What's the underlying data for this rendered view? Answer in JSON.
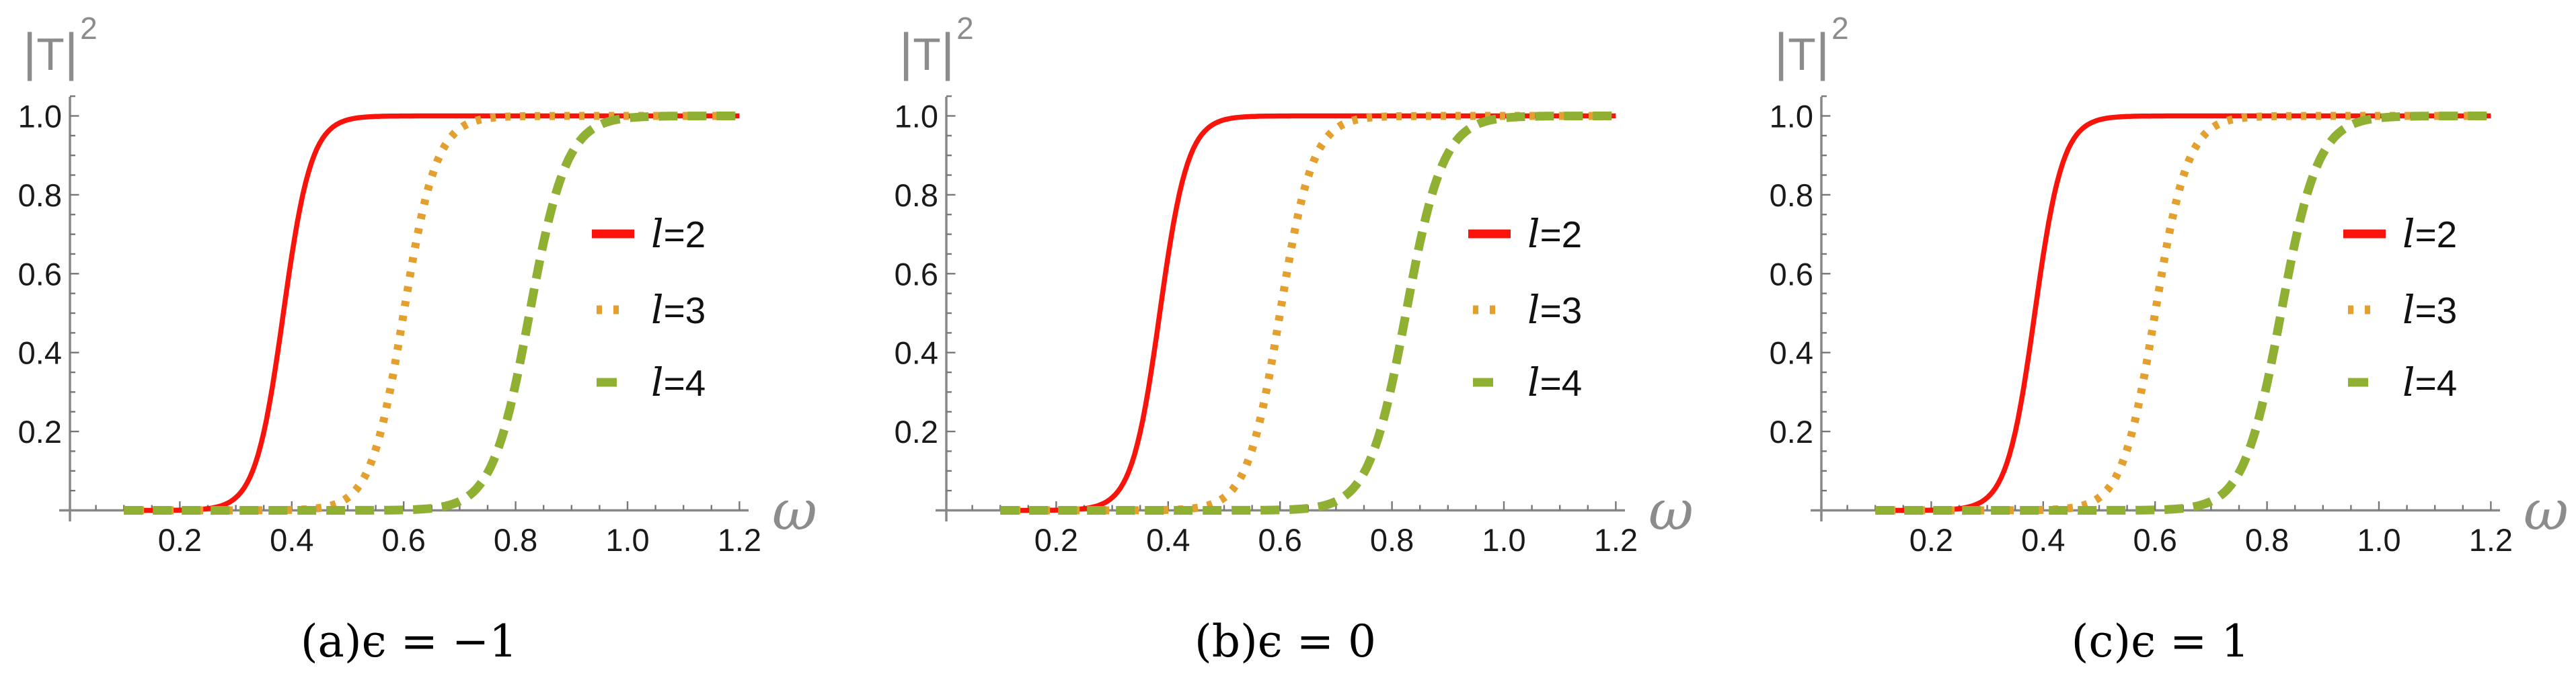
{
  "figure": {
    "background": "#ffffff",
    "description": "Three side-by-side Mathematica-style plots of transmission probability |T|^2 versus frequency ω for multipole numbers l=2,3,4, at ε=-1, ε=0, ε=1."
  },
  "axis": {
    "x_label": "ω",
    "y_label_base": "|T|",
    "y_label_exponent": "2",
    "axis_color": "#888888",
    "tick_color": "#777777",
    "tick_label_color": "#1a1a1a",
    "axis_label_color": "#8c8c8c"
  },
  "chart_data": [
    {
      "panel_id": "a",
      "type": "line",
      "title": "",
      "caption": "(a)ϵ = −1",
      "xlabel": "ω",
      "ylabel": "|T|²",
      "xlim": [
        0,
        1.21
      ],
      "ylim": [
        0,
        1.05
      ],
      "x_ticks": [
        0.2,
        0.4,
        0.6,
        0.8,
        1.0,
        1.2
      ],
      "y_ticks": [
        0.2,
        0.4,
        0.6,
        0.8,
        1.0
      ],
      "x_minor_step": 0.05,
      "y_minor_step": 0.05,
      "grid": false,
      "legend_position": "right-middle",
      "x_samples": [
        0.1,
        0.15,
        0.2,
        0.25,
        0.3,
        0.35,
        0.4,
        0.45,
        0.5,
        0.55,
        0.6,
        0.65,
        0.7,
        0.75,
        0.8,
        0.85,
        0.9,
        0.95,
        1.0,
        1.05,
        1.1,
        1.15,
        1.2
      ],
      "series": [
        {
          "name": "l=2",
          "color": "#f8130b",
          "style": "solid",
          "line_width": 7.5,
          "model": "logistic",
          "x0": 0.385,
          "k": 40,
          "x_start": 0.1,
          "x_end": 1.2,
          "y_samples": [
            0.0,
            0.0001,
            0.0006,
            0.0045,
            0.0323,
            0.1978,
            0.6457,
            0.9309,
            0.99,
            0.9986,
            0.9998,
            1.0,
            1.0,
            1.0,
            1.0,
            1.0,
            1.0,
            1.0,
            1.0,
            1.0,
            1.0,
            1.0,
            1.0
          ]
        },
        {
          "name": "l=3",
          "color": "#e3a02f",
          "style": "dotted",
          "line_width": 12,
          "model": "logistic",
          "x0": 0.6,
          "k": 34,
          "x_start": 0.1,
          "x_end": 1.2,
          "y_samples": [
            0.0,
            0.0,
            0.0,
            0.0,
            0.0,
            0.0002,
            0.0011,
            0.0061,
            0.0323,
            0.1545,
            0.5,
            0.8455,
            0.9677,
            0.9939,
            0.9989,
            0.9998,
            1.0,
            1.0,
            1.0,
            1.0,
            1.0,
            1.0,
            1.0
          ]
        },
        {
          "name": "l=4",
          "color": "#8fb032",
          "style": "dashed",
          "line_width": 13,
          "model": "logistic",
          "x0": 0.825,
          "k": 30,
          "x_start": 0.1,
          "x_end": 1.2,
          "y_samples": [
            0.0,
            0.0,
            0.0,
            0.0,
            0.0,
            0.0,
            0.0,
            0.0,
            0.0001,
            0.0003,
            0.0012,
            0.0052,
            0.023,
            0.0953,
            0.3208,
            0.6792,
            0.9047,
            0.977,
            0.9948,
            0.9988,
            0.9997,
            0.9999,
            1.0
          ]
        }
      ]
    },
    {
      "panel_id": "b",
      "type": "line",
      "title": "",
      "caption": "(b)ϵ = 0",
      "xlabel": "ω",
      "ylabel": "|T|²",
      "xlim": [
        0,
        1.21
      ],
      "ylim": [
        0,
        1.05
      ],
      "x_ticks": [
        0.2,
        0.4,
        0.6,
        0.8,
        1.0,
        1.2
      ],
      "y_ticks": [
        0.2,
        0.4,
        0.6,
        0.8,
        1.0
      ],
      "x_minor_step": 0.05,
      "y_minor_step": 0.05,
      "grid": false,
      "legend_position": "right-middle",
      "x_samples": [
        0.1,
        0.15,
        0.2,
        0.25,
        0.3,
        0.35,
        0.4,
        0.45,
        0.5,
        0.55,
        0.6,
        0.65,
        0.7,
        0.75,
        0.8,
        0.85,
        0.9,
        0.95,
        1.0,
        1.05,
        1.1,
        1.15,
        1.2
      ],
      "series": [
        {
          "name": "l=2",
          "color": "#f8130b",
          "style": "solid",
          "line_width": 7.5,
          "model": "logistic",
          "x0": 0.385,
          "k": 40,
          "x_start": 0.1,
          "x_end": 1.2,
          "y_samples": [
            0.0,
            0.0001,
            0.0006,
            0.0045,
            0.0323,
            0.1978,
            0.6457,
            0.9309,
            0.99,
            0.9986,
            0.9998,
            1.0,
            1.0,
            1.0,
            1.0,
            1.0,
            1.0,
            1.0,
            1.0,
            1.0,
            1.0,
            1.0,
            1.0
          ]
        },
        {
          "name": "l=3",
          "color": "#e3a02f",
          "style": "dotted",
          "line_width": 12,
          "model": "logistic",
          "x0": 0.6,
          "k": 34,
          "x_start": 0.1,
          "x_end": 1.2,
          "y_samples": [
            0.0,
            0.0,
            0.0,
            0.0,
            0.0,
            0.0002,
            0.0011,
            0.0061,
            0.0323,
            0.1545,
            0.5,
            0.8455,
            0.9677,
            0.9939,
            0.9989,
            0.9998,
            1.0,
            1.0,
            1.0,
            1.0,
            1.0,
            1.0,
            1.0
          ]
        },
        {
          "name": "l=4",
          "color": "#8fb032",
          "style": "dashed",
          "line_width": 13,
          "model": "logistic",
          "x0": 0.825,
          "k": 30,
          "x_start": 0.1,
          "x_end": 1.2,
          "y_samples": [
            0.0,
            0.0,
            0.0,
            0.0,
            0.0,
            0.0,
            0.0,
            0.0,
            0.0001,
            0.0003,
            0.0012,
            0.0052,
            0.023,
            0.0953,
            0.3208,
            0.6792,
            0.9047,
            0.977,
            0.9948,
            0.9988,
            0.9997,
            0.9999,
            1.0
          ]
        }
      ]
    },
    {
      "panel_id": "c",
      "type": "line",
      "title": "",
      "caption": "(c)ϵ = 1",
      "xlabel": "ω",
      "ylabel": "|T|²",
      "xlim": [
        0,
        1.21
      ],
      "ylim": [
        0,
        1.05
      ],
      "x_ticks": [
        0.2,
        0.4,
        0.6,
        0.8,
        1.0,
        1.2
      ],
      "y_ticks": [
        0.2,
        0.4,
        0.6,
        0.8,
        1.0
      ],
      "x_minor_step": 0.05,
      "y_minor_step": 0.05,
      "grid": false,
      "legend_position": "right-middle",
      "x_samples": [
        0.1,
        0.15,
        0.2,
        0.25,
        0.3,
        0.35,
        0.4,
        0.45,
        0.5,
        0.55,
        0.6,
        0.65,
        0.7,
        0.75,
        0.8,
        0.85,
        0.9,
        0.95,
        1.0,
        1.05,
        1.1,
        1.15,
        1.2
      ],
      "series": [
        {
          "name": "l=2",
          "color": "#f8130b",
          "style": "solid",
          "line_width": 7.5,
          "model": "logistic",
          "x0": 0.385,
          "k": 40,
          "x_start": 0.1,
          "x_end": 1.2,
          "y_samples": [
            0.0,
            0.0001,
            0.0006,
            0.0045,
            0.0323,
            0.1978,
            0.6457,
            0.9309,
            0.99,
            0.9986,
            0.9998,
            1.0,
            1.0,
            1.0,
            1.0,
            1.0,
            1.0,
            1.0,
            1.0,
            1.0,
            1.0,
            1.0,
            1.0
          ]
        },
        {
          "name": "l=3",
          "color": "#e3a02f",
          "style": "dotted",
          "line_width": 12,
          "model": "logistic",
          "x0": 0.6,
          "k": 34,
          "x_start": 0.1,
          "x_end": 1.2,
          "y_samples": [
            0.0,
            0.0,
            0.0,
            0.0,
            0.0,
            0.0002,
            0.0011,
            0.0061,
            0.0323,
            0.1545,
            0.5,
            0.8455,
            0.9677,
            0.9939,
            0.9989,
            0.9998,
            1.0,
            1.0,
            1.0,
            1.0,
            1.0,
            1.0,
            1.0
          ]
        },
        {
          "name": "l=4",
          "color": "#8fb032",
          "style": "dashed",
          "line_width": 13,
          "model": "logistic",
          "x0": 0.825,
          "k": 30,
          "x_start": 0.1,
          "x_end": 1.2,
          "y_samples": [
            0.0,
            0.0,
            0.0,
            0.0,
            0.0,
            0.0,
            0.0,
            0.0,
            0.0001,
            0.0003,
            0.0012,
            0.0052,
            0.023,
            0.0953,
            0.3208,
            0.6792,
            0.9047,
            0.977,
            0.9948,
            0.9988,
            0.9997,
            0.9999,
            1.0
          ]
        }
      ]
    }
  ]
}
